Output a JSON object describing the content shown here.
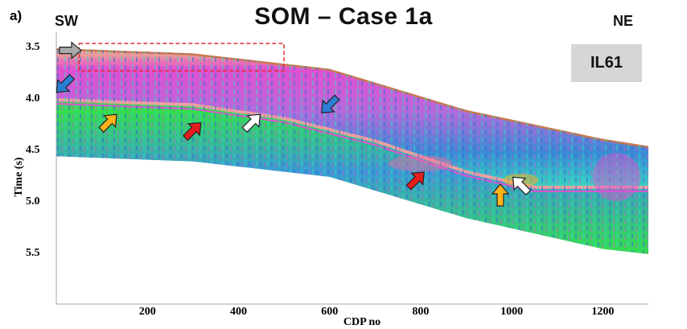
{
  "panel_label": "a)",
  "chart_data": {
    "type": "heatmap",
    "title": "SOM – Case 1a",
    "direction_left": "SW",
    "direction_right": "NE",
    "inline_label": "IL61",
    "xlabel": "CDP no",
    "ylabel": "Time (s)",
    "x_ticks": [
      "200",
      "400",
      "600",
      "800",
      "1000",
      "1200"
    ],
    "y_ticks": [
      "3.5",
      "4.0",
      "4.5",
      "5.0",
      "5.5"
    ],
    "xlim": [
      0,
      1300
    ],
    "ylim": [
      3.4,
      6.0
    ],
    "section_top": [
      [
        0,
        3.5
      ],
      [
        300,
        3.55
      ],
      [
        600,
        3.7
      ],
      [
        900,
        4.1
      ],
      [
        1200,
        4.38
      ],
      [
        1300,
        4.45
      ]
    ],
    "section_bottom": [
      [
        0,
        4.55
      ],
      [
        300,
        4.6
      ],
      [
        600,
        4.75
      ],
      [
        900,
        5.15
      ],
      [
        1200,
        5.45
      ],
      [
        1300,
        5.5
      ]
    ],
    "reflector_horizon": [
      [
        0,
        4.0
      ],
      [
        300,
        4.05
      ],
      [
        500,
        4.18
      ],
      [
        700,
        4.4
      ],
      [
        900,
        4.7
      ],
      [
        1050,
        4.85
      ]
    ],
    "highlight_box": {
      "x": [
        50,
        500
      ],
      "y": [
        3.5,
        3.72
      ]
    },
    "arrows": [
      {
        "color": "gray",
        "x": 30,
        "y": 3.52,
        "direction": "right"
      },
      {
        "color": "blue",
        "x": 18,
        "y": 3.85,
        "direction": "down-left"
      },
      {
        "color": "orange",
        "x": 115,
        "y": 4.22,
        "direction": "up-right"
      },
      {
        "color": "red",
        "x": 300,
        "y": 4.3,
        "direction": "up-right"
      },
      {
        "color": "white",
        "x": 430,
        "y": 4.22,
        "direction": "up-right"
      },
      {
        "color": "blue",
        "x": 600,
        "y": 4.05,
        "direction": "down-left"
      },
      {
        "color": "red",
        "x": 790,
        "y": 4.78,
        "direction": "up-right"
      },
      {
        "color": "orange",
        "x": 975,
        "y": 4.93,
        "direction": "up"
      },
      {
        "color": "white",
        "x": 1020,
        "y": 4.83,
        "direction": "up-left"
      }
    ],
    "colors": {
      "green": "#33e04a",
      "cyan": "#36d6c0",
      "blue": "#3a6bd6",
      "magenta": "#e24fd1",
      "pink": "#f06aa0",
      "orange": "#ffb21a",
      "red": "#e51d1d",
      "gray": "#a9a9a9",
      "highlight": "#e03030"
    }
  }
}
